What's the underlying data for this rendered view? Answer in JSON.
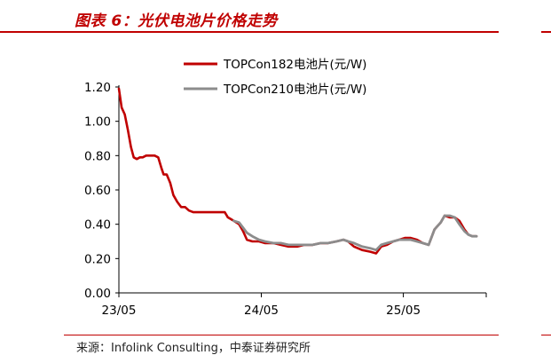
{
  "header": {
    "title": "图表 6：光伏电池片价格走势"
  },
  "footer": {
    "source": "来源：Infolink Consulting，中泰证券研究所"
  },
  "colors": {
    "accent": "#c00000",
    "series1": "#c00000",
    "series2": "#8c8c8c",
    "axis": "#000000"
  },
  "chart_data": {
    "type": "line",
    "title": "",
    "xlabel": "",
    "ylabel": "",
    "xlim": [
      "2023-05",
      "2025-11"
    ],
    "ylim": [
      0,
      1.2
    ],
    "x_ticks": [
      "23/05",
      "24/05",
      "25/05"
    ],
    "y_ticks": [
      "0.00",
      "0.20",
      "0.40",
      "0.60",
      "0.80",
      "1.00",
      "1.20"
    ],
    "grid": false,
    "legend": "top",
    "series": [
      {
        "name": "TOPCon182电池片(元/W)",
        "color": "#c00000",
        "points": [
          [
            "2023-05-01",
            1.19
          ],
          [
            "2023-05-08",
            1.08
          ],
          [
            "2023-05-16",
            1.04
          ],
          [
            "2023-05-24",
            0.95
          ],
          [
            "2023-06-01",
            0.85
          ],
          [
            "2023-06-08",
            0.79
          ],
          [
            "2023-06-16",
            0.78
          ],
          [
            "2023-06-24",
            0.79
          ],
          [
            "2023-07-01",
            0.79
          ],
          [
            "2023-07-10",
            0.8
          ],
          [
            "2023-07-20",
            0.8
          ],
          [
            "2023-08-01",
            0.8
          ],
          [
            "2023-08-10",
            0.79
          ],
          [
            "2023-08-18",
            0.73
          ],
          [
            "2023-08-24",
            0.69
          ],
          [
            "2023-09-01",
            0.69
          ],
          [
            "2023-09-10",
            0.64
          ],
          [
            "2023-09-18",
            0.57
          ],
          [
            "2023-09-28",
            0.53
          ],
          [
            "2023-10-08",
            0.5
          ],
          [
            "2023-10-18",
            0.5
          ],
          [
            "2023-10-28",
            0.48
          ],
          [
            "2023-11-08",
            0.47
          ],
          [
            "2023-11-20",
            0.47
          ],
          [
            "2023-12-01",
            0.47
          ],
          [
            "2023-12-15",
            0.47
          ],
          [
            "2024-01-01",
            0.47
          ],
          [
            "2024-01-15",
            0.47
          ],
          [
            "2024-01-28",
            0.47
          ],
          [
            "2024-02-05",
            0.44
          ],
          [
            "2024-02-20",
            0.42
          ],
          [
            "2024-03-05",
            0.4
          ],
          [
            "2024-03-15",
            0.36
          ],
          [
            "2024-03-25",
            0.31
          ],
          [
            "2024-04-08",
            0.3
          ],
          [
            "2024-04-25",
            0.3
          ],
          [
            "2024-05-10",
            0.29
          ],
          [
            "2024-06-01",
            0.29
          ],
          [
            "2024-06-20",
            0.28
          ],
          [
            "2024-07-10",
            0.27
          ],
          [
            "2024-08-01",
            0.27
          ],
          [
            "2024-08-20",
            0.28
          ],
          [
            "2024-09-10",
            0.28
          ],
          [
            "2024-10-01",
            0.29
          ],
          [
            "2024-10-20",
            0.29
          ],
          [
            "2024-11-10",
            0.3
          ],
          [
            "2024-11-28",
            0.31
          ],
          [
            "2024-12-10",
            0.3
          ],
          [
            "2024-12-25",
            0.27
          ],
          [
            "2025-01-15",
            0.25
          ],
          [
            "2025-02-05",
            0.24
          ],
          [
            "2025-02-20",
            0.23
          ],
          [
            "2025-03-05",
            0.27
          ],
          [
            "2025-03-20",
            0.28
          ],
          [
            "2025-04-05",
            0.3
          ],
          [
            "2025-04-20",
            0.31
          ],
          [
            "2025-05-05",
            0.32
          ],
          [
            "2025-05-20",
            0.32
          ],
          [
            "2025-06-05",
            0.31
          ],
          [
            "2025-06-20",
            0.29
          ],
          [
            "2025-07-05",
            0.28
          ],
          [
            "2025-07-20",
            0.37
          ],
          [
            "2025-08-05",
            0.41
          ],
          [
            "2025-08-15",
            0.45
          ],
          [
            "2025-08-28",
            0.44
          ],
          [
            "2025-09-10",
            0.44
          ],
          [
            "2025-09-22",
            0.42
          ],
          [
            "2025-10-05",
            0.37
          ],
          [
            "2025-10-15",
            0.34
          ],
          [
            "2025-10-25",
            0.33
          ],
          [
            "2025-11-05",
            0.33
          ]
        ]
      },
      {
        "name": "TOPCon210电池片(元/W)",
        "color": "#8c8c8c",
        "points": [
          [
            "2024-02-20",
            0.42
          ],
          [
            "2024-03-05",
            0.41
          ],
          [
            "2024-03-15",
            0.38
          ],
          [
            "2024-03-25",
            0.35
          ],
          [
            "2024-04-08",
            0.33
          ],
          [
            "2024-04-25",
            0.31
          ],
          [
            "2024-05-10",
            0.3
          ],
          [
            "2024-06-01",
            0.29
          ],
          [
            "2024-06-20",
            0.29
          ],
          [
            "2024-07-10",
            0.28
          ],
          [
            "2024-08-01",
            0.28
          ],
          [
            "2024-08-20",
            0.28
          ],
          [
            "2024-09-10",
            0.28
          ],
          [
            "2024-10-01",
            0.29
          ],
          [
            "2024-10-20",
            0.29
          ],
          [
            "2024-11-10",
            0.3
          ],
          [
            "2024-11-28",
            0.31
          ],
          [
            "2024-12-10",
            0.3
          ],
          [
            "2024-12-25",
            0.29
          ],
          [
            "2025-01-15",
            0.27
          ],
          [
            "2025-02-05",
            0.26
          ],
          [
            "2025-02-20",
            0.25
          ],
          [
            "2025-03-05",
            0.28
          ],
          [
            "2025-03-20",
            0.29
          ],
          [
            "2025-04-05",
            0.3
          ],
          [
            "2025-04-20",
            0.31
          ],
          [
            "2025-05-05",
            0.31
          ],
          [
            "2025-05-20",
            0.31
          ],
          [
            "2025-06-05",
            0.3
          ],
          [
            "2025-06-20",
            0.29
          ],
          [
            "2025-07-05",
            0.28
          ],
          [
            "2025-07-20",
            0.37
          ],
          [
            "2025-08-05",
            0.41
          ],
          [
            "2025-08-15",
            0.45
          ],
          [
            "2025-08-28",
            0.45
          ],
          [
            "2025-09-10",
            0.44
          ],
          [
            "2025-09-22",
            0.4
          ],
          [
            "2025-10-05",
            0.36
          ],
          [
            "2025-10-15",
            0.34
          ],
          [
            "2025-10-25",
            0.33
          ],
          [
            "2025-11-05",
            0.33
          ]
        ]
      }
    ]
  }
}
